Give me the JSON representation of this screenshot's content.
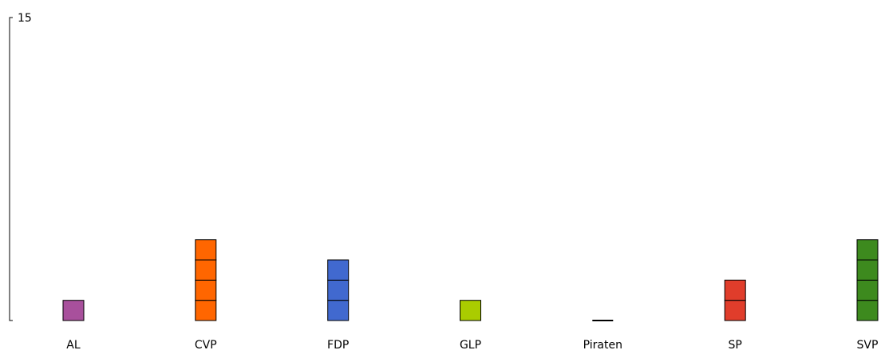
{
  "chart_data": {
    "type": "bar",
    "categories": [
      "AL",
      "CVP",
      "FDP",
      "GLP",
      "Piraten",
      "SP",
      "SVP"
    ],
    "values": [
      1,
      4,
      3,
      1,
      0,
      2,
      4
    ],
    "colors": [
      "#a8509c",
      "#ff6600",
      "#4169cf",
      "#aacc00",
      "#000000",
      "#e03d2b",
      "#3d8a1e"
    ],
    "ylim": [
      0,
      15
    ],
    "ytick_labels": [
      "15"
    ],
    "bar_style": "stacked unit blocks",
    "grid": false,
    "legend": "none"
  }
}
